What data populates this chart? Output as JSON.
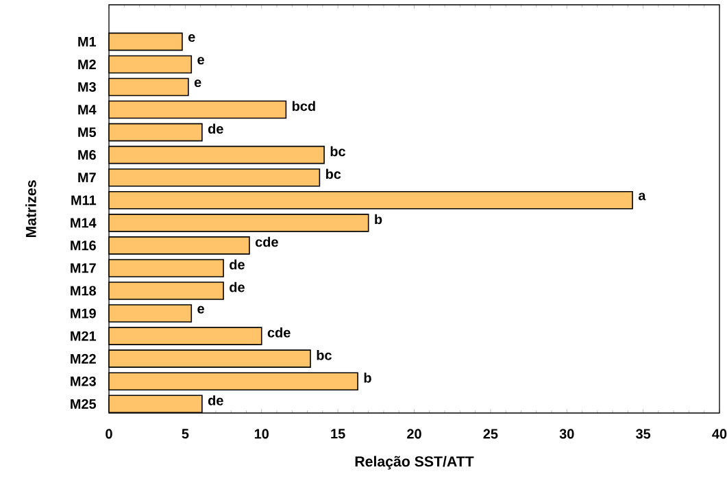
{
  "chart_data": {
    "type": "bar",
    "orientation": "horizontal",
    "xlabel": "Relação SST/ATT",
    "ylabel": "Matrizes",
    "categories": [
      "M1",
      "M2",
      "M3",
      "M4",
      "M5",
      "M6",
      "M7",
      "M11",
      "M14",
      "M16",
      "M17",
      "M18",
      "M19",
      "M21",
      "M22",
      "M23",
      "M25"
    ],
    "values": [
      4.8,
      5.4,
      5.2,
      11.6,
      6.1,
      14.1,
      13.8,
      34.3,
      17.0,
      9.2,
      7.5,
      7.5,
      5.4,
      10.0,
      13.2,
      16.3,
      6.1
    ],
    "value_labels": [
      "e",
      "e",
      "e",
      "bcd",
      "de",
      "bc",
      "bc",
      "a",
      "b",
      "cde",
      "de",
      "de",
      "e",
      "cde",
      "bc",
      "b",
      "de"
    ],
    "color": "#ffc469",
    "xlim": [
      0,
      40
    ],
    "xticks": [
      0,
      5,
      10,
      15,
      20,
      25,
      30,
      35,
      40
    ],
    "grid": false
  }
}
